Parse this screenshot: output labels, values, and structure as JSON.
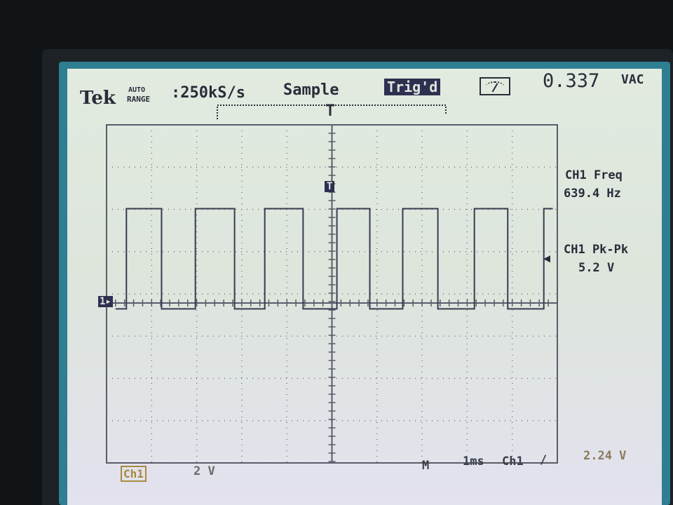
{
  "header": {
    "brand": "Tek",
    "mode_top": "AUTO",
    "mode_bottom": "RANGE",
    "sample_rate": ":250kS/s",
    "acq_mode": "Sample",
    "trigger_status": "Trig'd",
    "meter_icon": "analog-meter-icon",
    "reading": "0.337",
    "reading_unit": "VAC"
  },
  "measurements": [
    {
      "label": "CH1 Freq",
      "value": "639.4 Hz"
    },
    {
      "label": "CH1 Pk-Pk",
      "value": "5.2 V"
    }
  ],
  "footer": {
    "channel": "Ch1",
    "volts_div": "2 V",
    "m": "M",
    "timebase": "1ms",
    "trig_source": "Ch1",
    "trig_slope": "/",
    "trig_level": "2.24 V"
  },
  "markers": {
    "ground": "1▸",
    "trigger": "T"
  },
  "colors": {
    "trace": "#3a3b50",
    "grid": "#5a5c6a",
    "screen": "#e0e8de",
    "frame": "#2f7f93"
  },
  "chart_data": {
    "type": "line",
    "x_unit": "ms",
    "y_unit": "V",
    "xlim": [
      -5,
      5
    ],
    "ylim": [
      -8,
      8
    ],
    "x_divisions": 10,
    "y_divisions": 8,
    "grid": true,
    "volts_per_div": 2,
    "ms_per_div": 1,
    "high_v": 4.8,
    "low_v": -0.3,
    "rising_edges_ms": [
      -4.56,
      -3.03,
      -1.49,
      0.11,
      1.57,
      3.16,
      4.7
    ],
    "falling_edges_ms": [
      -3.78,
      -2.16,
      -0.64,
      0.84,
      2.35,
      3.9
    ],
    "trigger_level_v": 2.24
  }
}
